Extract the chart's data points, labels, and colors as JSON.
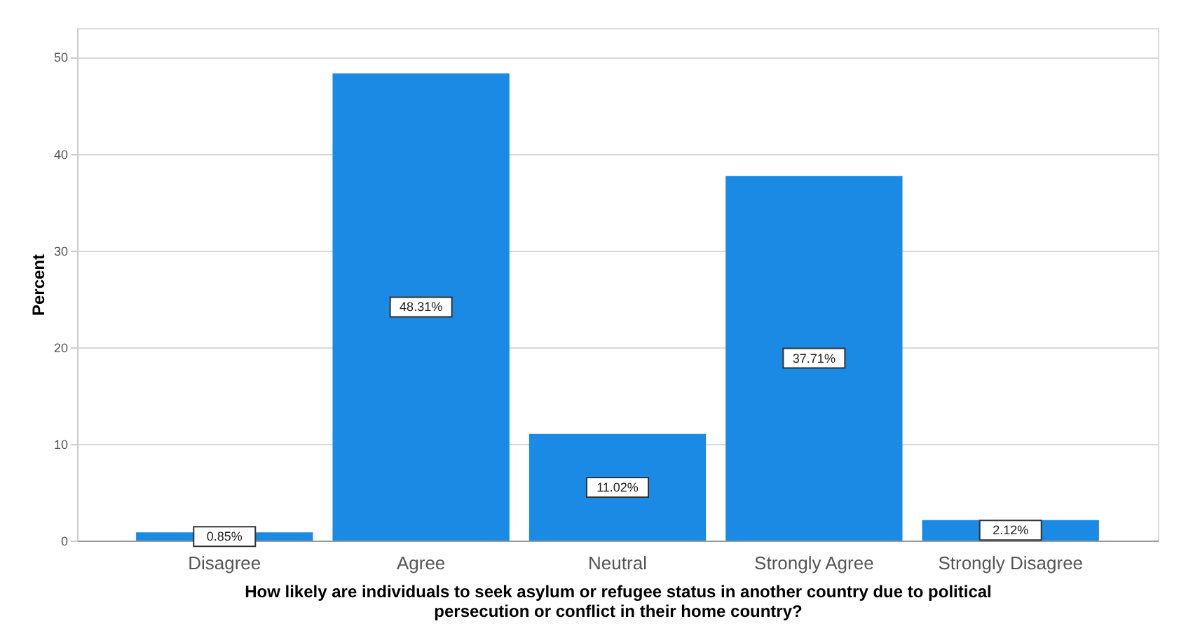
{
  "chart_data": {
    "type": "bar",
    "categories": [
      "Disagree",
      "Agree",
      "Neutral",
      "Strongly Agree",
      "Strongly Disagree"
    ],
    "values": [
      0.85,
      48.31,
      11.02,
      37.71,
      2.12
    ],
    "value_labels": [
      "0.85%",
      "48.31%",
      "11.02%",
      "37.71%",
      "2.12%"
    ],
    "color": "#1a8ae5",
    "ylabel": "Percent",
    "xlabel": "How likely are individuals to seek asylum or refugee status in another country due to political\npersecution or conflict in their home country?",
    "ylim": [
      0,
      53
    ],
    "yticks": [
      0,
      10,
      20,
      30,
      40,
      50
    ],
    "grid": "y"
  }
}
